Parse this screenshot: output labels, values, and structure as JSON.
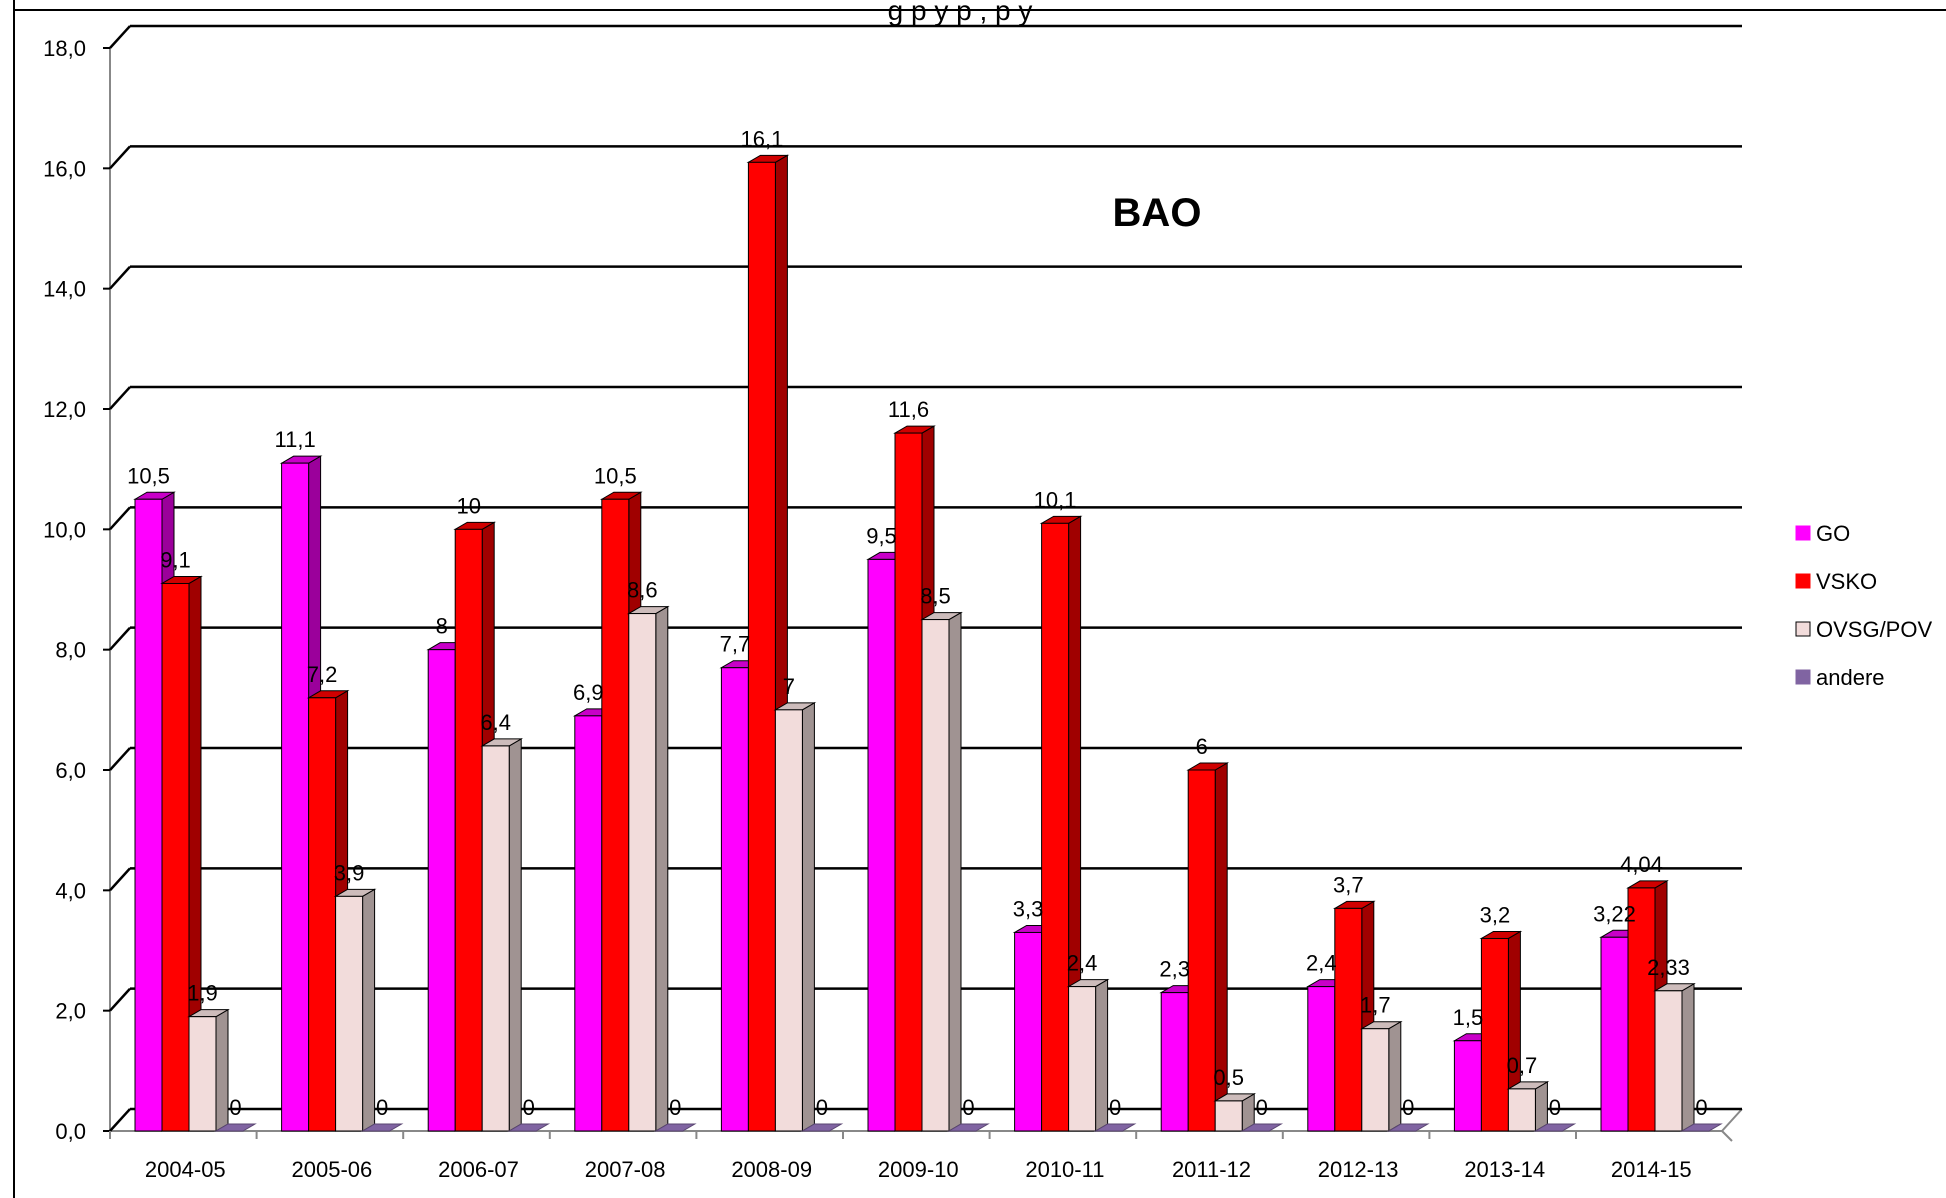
{
  "chart_data": {
    "type": "bar",
    "title": "g          p                                               y          p              ,  p                y",
    "annotation": "BAO",
    "categories": [
      "2004-05",
      "2005-06",
      "2006-07",
      "2007-08",
      "2008-09",
      "2009-10",
      "2010-11",
      "2011-12",
      "2012-13",
      "2013-14",
      "2014-15"
    ],
    "series": [
      {
        "name": "GO",
        "color": "#ff00ff",
        "side": "#9b009b",
        "top": "#c800c8",
        "values": [
          10.5,
          11.1,
          8,
          6.9,
          7.7,
          9.5,
          3.3,
          2.3,
          2.4,
          1.5,
          3.22
        ],
        "labels": [
          "10,5",
          "11,1",
          "8",
          "6,9",
          "7,7",
          "9,5",
          "3,3",
          "2,3",
          "2,4",
          "1,5",
          "3,22"
        ]
      },
      {
        "name": "VSKO",
        "color": "#ff0000",
        "side": "#a00000",
        "top": "#d00000",
        "values": [
          9.1,
          7.2,
          10,
          10.5,
          16.1,
          11.6,
          10.1,
          6,
          3.7,
          3.2,
          4.04
        ],
        "labels": [
          "9,1",
          "7,2",
          "10",
          "10,5",
          "16,1",
          "11,6",
          "10,1",
          "6",
          "3,7",
          "3,2",
          "4,04"
        ]
      },
      {
        "name": "OVSG/POV",
        "color": "#f2dcdb",
        "side": "#a09392",
        "top": "#cdbcbb",
        "values": [
          1.9,
          3.9,
          6.4,
          8.6,
          7,
          8.5,
          2.4,
          0.5,
          1.7,
          0.7,
          2.33
        ],
        "labels": [
          "1,9",
          "3,9",
          "6,4",
          "8,6",
          "7",
          "8,5",
          "2,4",
          "0,5",
          "1,7",
          "0,7",
          "2,33"
        ]
      },
      {
        "name": "andere",
        "color": "#8064a2",
        "side": "#5a4672",
        "top": "#6d5589",
        "values": [
          0,
          0,
          0,
          0,
          0,
          0,
          0,
          0,
          0,
          0,
          0
        ],
        "labels": [
          "0",
          "0",
          "0",
          "0",
          "0",
          "0",
          "0",
          "0",
          "0",
          "0",
          "0"
        ]
      }
    ],
    "ylim": [
      0,
      18
    ],
    "yticks": [
      "0,0",
      "2,0",
      "4,0",
      "6,0",
      "8,0",
      "10,0",
      "12,0",
      "14,0",
      "16,0",
      "18,0"
    ],
    "grid": true,
    "legend_position": "right"
  }
}
